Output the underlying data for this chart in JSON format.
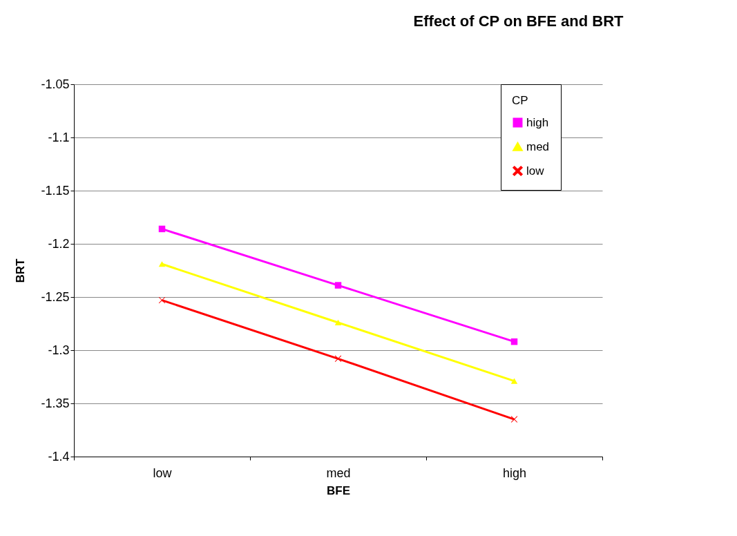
{
  "chart_data": {
    "type": "line",
    "title": "Effect of CP on BFE and BRT",
    "xlabel": "BFE",
    "ylabel": "BRT",
    "legend_title": "CP",
    "categories": [
      "low",
      "med",
      "high"
    ],
    "series": [
      {
        "name": "high",
        "color": "#ff00ff",
        "marker": "square",
        "values": [
          -1.186,
          -1.239,
          -1.292
        ]
      },
      {
        "name": "med",
        "color": "#ffff00",
        "marker": "triangle",
        "values": [
          -1.219,
          -1.274,
          -1.329
        ]
      },
      {
        "name": "low",
        "color": "#ff0000",
        "marker": "cross",
        "values": [
          -1.253,
          -1.308,
          -1.365
        ]
      }
    ],
    "ylim": [
      -1.4,
      -1.05
    ],
    "yticks": [
      -1.4,
      -1.35,
      -1.3,
      -1.25,
      -1.2,
      -1.15,
      -1.1,
      -1.05
    ],
    "grid": "y",
    "legend": "top right"
  }
}
